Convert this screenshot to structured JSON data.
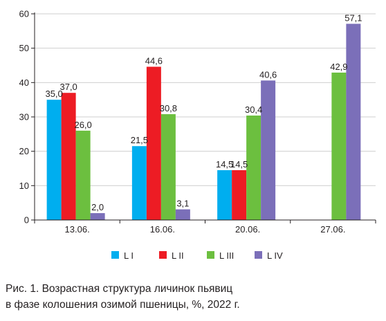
{
  "chart_data": {
    "type": "bar",
    "categories": [
      "13.06.",
      "16.06.",
      "20.06.",
      "27.06."
    ],
    "series": [
      {
        "name": "L I",
        "color": "#00aeef",
        "values": [
          35.0,
          21.5,
          14.5,
          null
        ],
        "labels": [
          "35,0",
          "21,5",
          "14,5",
          ""
        ]
      },
      {
        "name": "L II",
        "color": "#ed1c24",
        "values": [
          37.0,
          44.6,
          14.5,
          null
        ],
        "labels": [
          "37,0",
          "44,6",
          "14,5",
          ""
        ]
      },
      {
        "name": "L III",
        "color": "#6cbf3f",
        "values": [
          26.0,
          30.8,
          30.4,
          42.9
        ],
        "labels": [
          "26,0",
          "30,8",
          "30,4",
          "42,9"
        ]
      },
      {
        "name": "L IV",
        "color": "#7b6fb9",
        "values": [
          2.0,
          3.1,
          40.6,
          57.1
        ],
        "labels": [
          "2,0",
          "3,1",
          "40,6",
          "57,1"
        ]
      }
    ],
    "ylim": [
      0,
      60
    ],
    "yticks": [
      "0",
      "10",
      "20",
      "30",
      "40",
      "50",
      "60"
    ],
    "grid": true,
    "legend_position": "bottom"
  },
  "caption": {
    "line1": "Рис. 1. Возрастная структура личинок пьявиц",
    "line2": "в фазе колошения озимой пшеницы, %, 2022 г."
  }
}
